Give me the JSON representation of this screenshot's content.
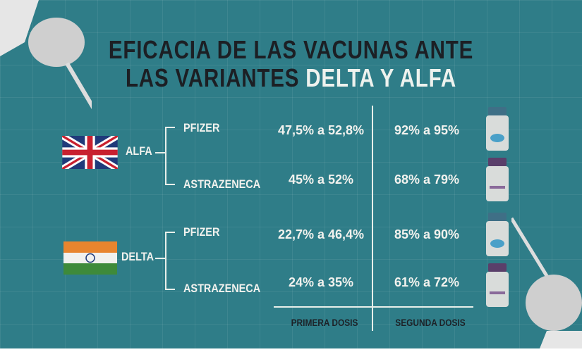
{
  "title": {
    "line1": "EFICACIA DE LAS VACUNAS ANTE",
    "line2_prefix": "LAS VARIANTES ",
    "line2_highlight": "DELTA Y ALFA"
  },
  "groups": [
    {
      "variant": "ALFA",
      "flag": "uk-flag",
      "rows": [
        {
          "vaccine": "PFIZER",
          "first_dose": "47,5% a 52,8%",
          "second_dose": "92% a 95%"
        },
        {
          "vaccine": "ASTRAZENECA",
          "first_dose": "45% a 52%",
          "second_dose": "68% a 79%"
        }
      ]
    },
    {
      "variant": "DELTA",
      "flag": "india-flag",
      "rows": [
        {
          "vaccine": "PFIZER",
          "first_dose": "22,7% a 46,4%",
          "second_dose": "85% a 90%"
        },
        {
          "vaccine": "ASTRAZENECA",
          "first_dose": "24% a 35%",
          "second_dose": "61% a 72%"
        }
      ]
    }
  ],
  "columns": {
    "first": "PRIMERA DOSIS",
    "second": "SEGUNDA DOSIS"
  },
  "colors": {
    "background": "#2f7d88",
    "pfizer_cap": "#3f6f86",
    "astra_cap": "#5a3f6a"
  }
}
